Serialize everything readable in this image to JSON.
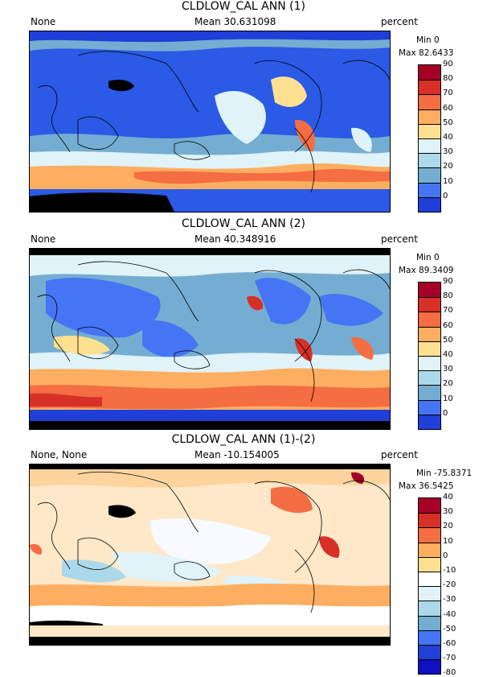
{
  "panels": [
    {
      "title": "CLDLOW_CAL ANN (1)",
      "left_label": "None",
      "mean": "Mean 30.631098",
      "units": "percent",
      "min": "Min 0",
      "max": "Max 82.6433",
      "colorbar": {
        "colors": [
          "#a50026",
          "#d73027",
          "#f46d43",
          "#fdae61",
          "#fee090",
          "#e0f3f8",
          "#abd9e9",
          "#74add1",
          "#4575f4",
          "#1f3fd8"
        ],
        "ticks": [
          "90",
          "80",
          "70",
          "60",
          "50",
          "40",
          "30",
          "20",
          "10",
          "0"
        ]
      },
      "background_color": "#2f5fe6"
    },
    {
      "title": "CLDLOW_CAL ANN (2)",
      "left_label": "None",
      "mean": "Mean 40.348916",
      "units": "percent",
      "min": "Min 0",
      "max": "Max 89.3409",
      "colorbar": {
        "colors": [
          "#a50026",
          "#d73027",
          "#f46d43",
          "#fdae61",
          "#fee090",
          "#e0f3f8",
          "#abd9e9",
          "#74add1",
          "#4575f4",
          "#1f3fd8"
        ],
        "ticks": [
          "90",
          "80",
          "70",
          "60",
          "50",
          "40",
          "30",
          "20",
          "10",
          "0"
        ]
      },
      "background_color": "#6aa0f0"
    },
    {
      "title": "CLDLOW_CAL ANN (1)-(2)",
      "left_label": "None, None",
      "mean": "Mean -10.154005",
      "units": "percent",
      "min": "Min -75.8371",
      "max": "Max 36.5425",
      "colorbar": {
        "colors": [
          "#a50026",
          "#d73027",
          "#f46d43",
          "#fdae61",
          "#fee090",
          "#ffffff",
          "#e0f3f8",
          "#abd9e9",
          "#74add1",
          "#4575f4",
          "#2040d8",
          "#1010c0"
        ],
        "ticks": [
          "40",
          "30",
          "20",
          "10",
          "0",
          "-10",
          "-20",
          "-30",
          "-40",
          "-50",
          "-60",
          "-70",
          "-80"
        ]
      },
      "background_color": "#fde0b8"
    }
  ]
}
